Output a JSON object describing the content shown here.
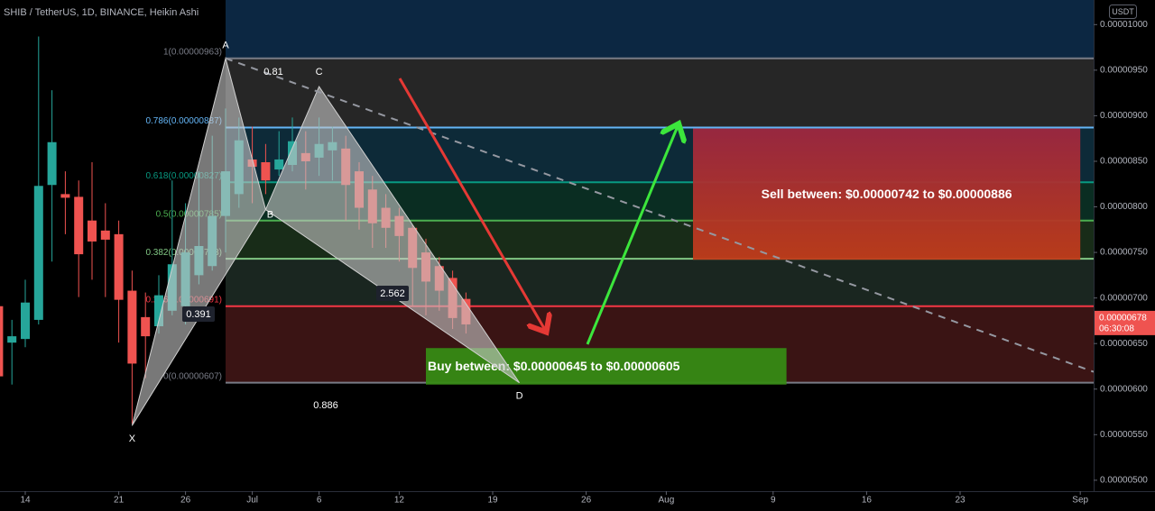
{
  "chart_data": {
    "type": "candlestick",
    "title": "SHIB / TetherUS, 1D, BINANCE, Heikin Ashi",
    "currency": "USDT",
    "categories": [
      null,
      null,
      "14",
      null,
      null,
      null,
      null,
      null,
      null,
      "21",
      null,
      null,
      null,
      null,
      "26",
      null,
      null,
      null,
      null,
      "Jul",
      null,
      null,
      null,
      null,
      "6",
      null,
      null,
      null,
      null,
      null,
      "12",
      null,
      null,
      null,
      null,
      null,
      null,
      "19",
      null,
      null,
      null,
      null,
      null,
      null,
      "26",
      null,
      null,
      null,
      null,
      null,
      "Aug",
      null,
      null,
      null,
      null,
      null,
      null,
      null,
      "9",
      null,
      null,
      null,
      null,
      null,
      null,
      "16",
      null,
      null,
      null,
      null,
      null,
      null,
      "23",
      null,
      null,
      null,
      null,
      null,
      null,
      null,
      null,
      "Sep",
      null
    ],
    "candles": {
      "up_color": "#26a69a",
      "down_color": "#ef5350",
      "open": [
        6.91e-06,
        6.51e-06,
        6.55e-06,
        6.76e-06,
        8.24e-06,
        8.14e-06,
        8.11e-06,
        7.85e-06,
        7.74e-06,
        7.7e-06,
        7.08e-06,
        6.79e-06,
        6.69e-06,
        6.86e-06,
        6.91e-06,
        7.25e-06,
        7.35e-06,
        7.9e-06,
        8.14e-06,
        8.52e-06,
        8.49e-06,
        8.41e-06,
        8.46e-06,
        8.59e-06,
        8.54e-06,
        8.62e-06,
        8.64e-06,
        8.39e-06,
        8.19e-06,
        7.99e-06,
        7.9e-06,
        7.77e-06,
        7.5e-06,
        7.35e-06,
        7.22e-06,
        6.99e-06,
        null,
        null,
        null,
        null,
        null,
        null,
        null,
        null,
        null,
        null,
        null,
        null,
        null,
        null,
        null,
        null,
        null,
        null,
        null,
        null,
        null,
        null,
        null,
        null,
        null,
        null,
        null,
        null,
        null,
        null,
        null,
        null,
        null,
        null,
        null,
        null,
        null,
        null,
        null,
        null,
        null,
        null,
        null,
        null,
        null,
        null,
        null
      ],
      "high": [
        7.01e-06,
        6.76e-06,
        7.2e-06,
        9.87e-06,
        9.28e-06,
        8.39e-06,
        8.29e-06,
        8.49e-06,
        8.04e-06,
        7.85e-06,
        7.3e-06,
        7.06e-06,
        7.25e-06,
        8.29e-06,
        8.04e-06,
        8.39e-06,
        8.78e-06,
        9.08e-06,
        8.98e-06,
        8.88e-06,
        8.69e-06,
        8.83e-06,
        8.98e-06,
        8.83e-06,
        8.98e-06,
        8.88e-06,
        8.78e-06,
        8.49e-06,
        8.34e-06,
        8.14e-06,
        7.99e-06,
        7.8e-06,
        7.65e-06,
        7.45e-06,
        7.3e-06,
        7.06e-06,
        null,
        null,
        null,
        null,
        null,
        null,
        null,
        null,
        null,
        null,
        null,
        null,
        null,
        null,
        null,
        null,
        null,
        null,
        null,
        null,
        null,
        null,
        null,
        null,
        null,
        null,
        null,
        null,
        null,
        null,
        null,
        null,
        null,
        null,
        null,
        null,
        null,
        null,
        null,
        null,
        null,
        null,
        null,
        null,
        null,
        null,
        null
      ],
      "low": [
        6.12e-06,
        6.05e-06,
        6.46e-06,
        6.71e-06,
        7.4e-06,
        7.7e-06,
        7.01e-06,
        7.2e-06,
        7.01e-06,
        6.51e-06,
        5.62e-06,
        6.12e-06,
        6.61e-06,
        6.81e-06,
        6.71e-06,
        7.15e-06,
        7.3e-06,
        7.5e-06,
        7.99e-06,
        8.04e-06,
        8.14e-06,
        8.34e-06,
        8.39e-06,
        8.19e-06,
        8.34e-06,
        8.29e-06,
        7.85e-06,
        7.75e-06,
        7.55e-06,
        7.55e-06,
        7.4e-06,
        6.91e-06,
        6.81e-06,
        6.86e-06,
        6.66e-06,
        6.61e-06,
        null,
        null,
        null,
        null,
        null,
        null,
        null,
        null,
        null,
        null,
        null,
        null,
        null,
        null,
        null,
        null,
        null,
        null,
        null,
        null,
        null,
        null,
        null,
        null,
        null,
        null,
        null,
        null,
        null,
        null,
        null,
        null,
        null,
        null,
        null,
        null,
        null,
        null,
        null,
        null,
        null,
        null,
        null,
        null,
        null,
        null,
        null
      ],
      "close": [
        6.14e-06,
        6.58e-06,
        6.95e-06,
        8.23e-06,
        8.71e-06,
        8.1e-06,
        7.48e-06,
        7.62e-06,
        7.64e-06,
        6.98e-06,
        6.28e-06,
        6.58e-06,
        7.03e-06,
        7.37e-06,
        7.5e-06,
        7.57e-06,
        7.9e-06,
        8.39e-06,
        8.73e-06,
        8.44e-06,
        8.29e-06,
        8.52e-06,
        8.72e-06,
        8.5e-06,
        8.69e-06,
        8.71e-06,
        8.24e-06,
        7.99e-06,
        7.82e-06,
        7.77e-06,
        7.68e-06,
        7.33e-06,
        7.18e-06,
        7.08e-06,
        6.78e-06,
        6.71e-06,
        null,
        null,
        null,
        null,
        null,
        null,
        null,
        null,
        null,
        null,
        null,
        null,
        null,
        null,
        null,
        null,
        null,
        null,
        null,
        null,
        null,
        null,
        null,
        null,
        null,
        null,
        null,
        null,
        null,
        null,
        null,
        null,
        null,
        null,
        null,
        null,
        null,
        null,
        null,
        null,
        null,
        null,
        null,
        null,
        null,
        null,
        null
      ]
    },
    "ylim": [
      4.88e-06,
      1.027e-05
    ],
    "yticks": [
      {
        "value": 5e-06,
        "label": "0.00000500"
      },
      {
        "value": 5.5e-06,
        "label": "0.00000550"
      },
      {
        "value": 6e-06,
        "label": "0.00000600"
      },
      {
        "value": 6.5e-06,
        "label": "0.00000650"
      },
      {
        "value": 7e-06,
        "label": "0.00000700"
      },
      {
        "value": 7.5e-06,
        "label": "0.00000750"
      },
      {
        "value": 8e-06,
        "label": "0.00000800"
      },
      {
        "value": 8.5e-06,
        "label": "0.00000850"
      },
      {
        "value": 9e-06,
        "label": "0.00000900"
      },
      {
        "value": 9.5e-06,
        "label": "0.00000950"
      },
      {
        "value": 1e-05,
        "label": "0.00001000"
      }
    ],
    "last_price": {
      "value": 6.78e-06,
      "label": "0.00000678"
    },
    "countdown": "06:30:08",
    "fib": {
      "x_range": [
        17,
        82
      ],
      "levels": [
        {
          "label": "1(0.00000963)",
          "value": 9.63e-06,
          "color": "#787b86",
          "fill": "#262626"
        },
        {
          "label": "0.786(0.00000887)",
          "value": 8.87e-06,
          "color": "#64b5f6",
          "fill": "#0d2a38"
        },
        {
          "label": "0.618(0.00000827)",
          "value": 8.27e-06,
          "color": "#089981",
          "fill": "#0a2d22"
        },
        {
          "label": "0.5(0.00000785)",
          "value": 7.85e-06,
          "color": "#4caf50",
          "fill": "#182c18"
        },
        {
          "label": "0.382(0.00000743)",
          "value": 7.43e-06,
          "color": "#81c784",
          "fill": "#1a2620"
        },
        {
          "label": "0.236(0.00000691)",
          "value": 6.91e-06,
          "color": "#f23645",
          "fill": "#3a1414"
        },
        {
          "label": "0(0.00000607)",
          "value": 6.07e-06,
          "color": "#787b86"
        }
      ]
    },
    "pattern": [
      {
        "label": "X",
        "x": 10,
        "value": 5.6e-06
      },
      {
        "label": "A",
        "x": 17,
        "value": 9.63e-06
      },
      {
        "label": "B",
        "x": 20,
        "value": 7.97e-06
      },
      {
        "label": "C",
        "x": 24,
        "value": 9.32e-06
      },
      {
        "label": "D",
        "x": 39,
        "value": 6.07e-06
      }
    ],
    "ratios": [
      "0.81",
      "0.391",
      "2.562",
      "0.886"
    ],
    "trendline": {
      "x0": 17,
      "v0": 9.63e-06,
      "x1": 82,
      "v1": 6.19e-06
    },
    "zones": [
      {
        "label": "Sell between: $0.00000742 to $0.00000886",
        "x0": 52,
        "x1": 81,
        "top": 8.86e-06,
        "bottom": 7.42e-06,
        "color": "#b0302c"
      },
      {
        "label": "Buy between: $0.00000645 to $0.00000605",
        "x0": 32,
        "x1": 59,
        "top": 6.45e-06,
        "bottom": 6.05e-06,
        "color": "#368a14"
      }
    ]
  }
}
